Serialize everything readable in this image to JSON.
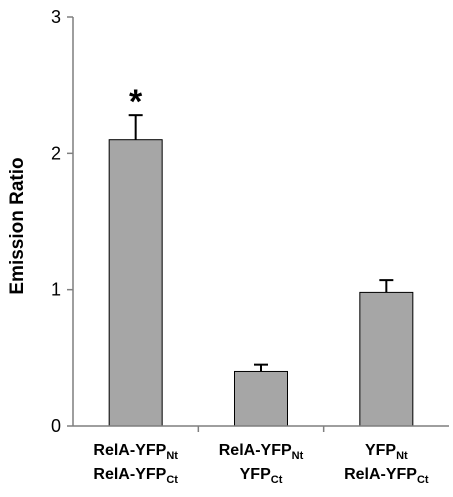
{
  "chart_data": {
    "type": "bar",
    "title": "",
    "xlabel": "",
    "ylabel": "Emission Ratio",
    "ylim": [
      0,
      3
    ],
    "yticks": [
      0,
      1,
      2,
      3
    ],
    "grid": false,
    "bar_color": "#a6a6a6",
    "categories": [
      {
        "line1": {
          "main": "RelA-YFP",
          "sub": "Nt"
        },
        "line2": {
          "main": "RelA-YFP",
          "sub": "Ct"
        }
      },
      {
        "line1": {
          "main": "RelA-YFP",
          "sub": "Nt"
        },
        "line2": {
          "main": "YFP",
          "sub": "Ct"
        }
      },
      {
        "line1": {
          "main": "YFP",
          "sub": "Nt"
        },
        "line2": {
          "main": "RelA-YFP",
          "sub": "Ct"
        }
      }
    ],
    "values": [
      2.1,
      0.4,
      0.98
    ],
    "error_plus": [
      0.18,
      0.05,
      0.09
    ],
    "annotations": [
      "*",
      "",
      ""
    ]
  }
}
